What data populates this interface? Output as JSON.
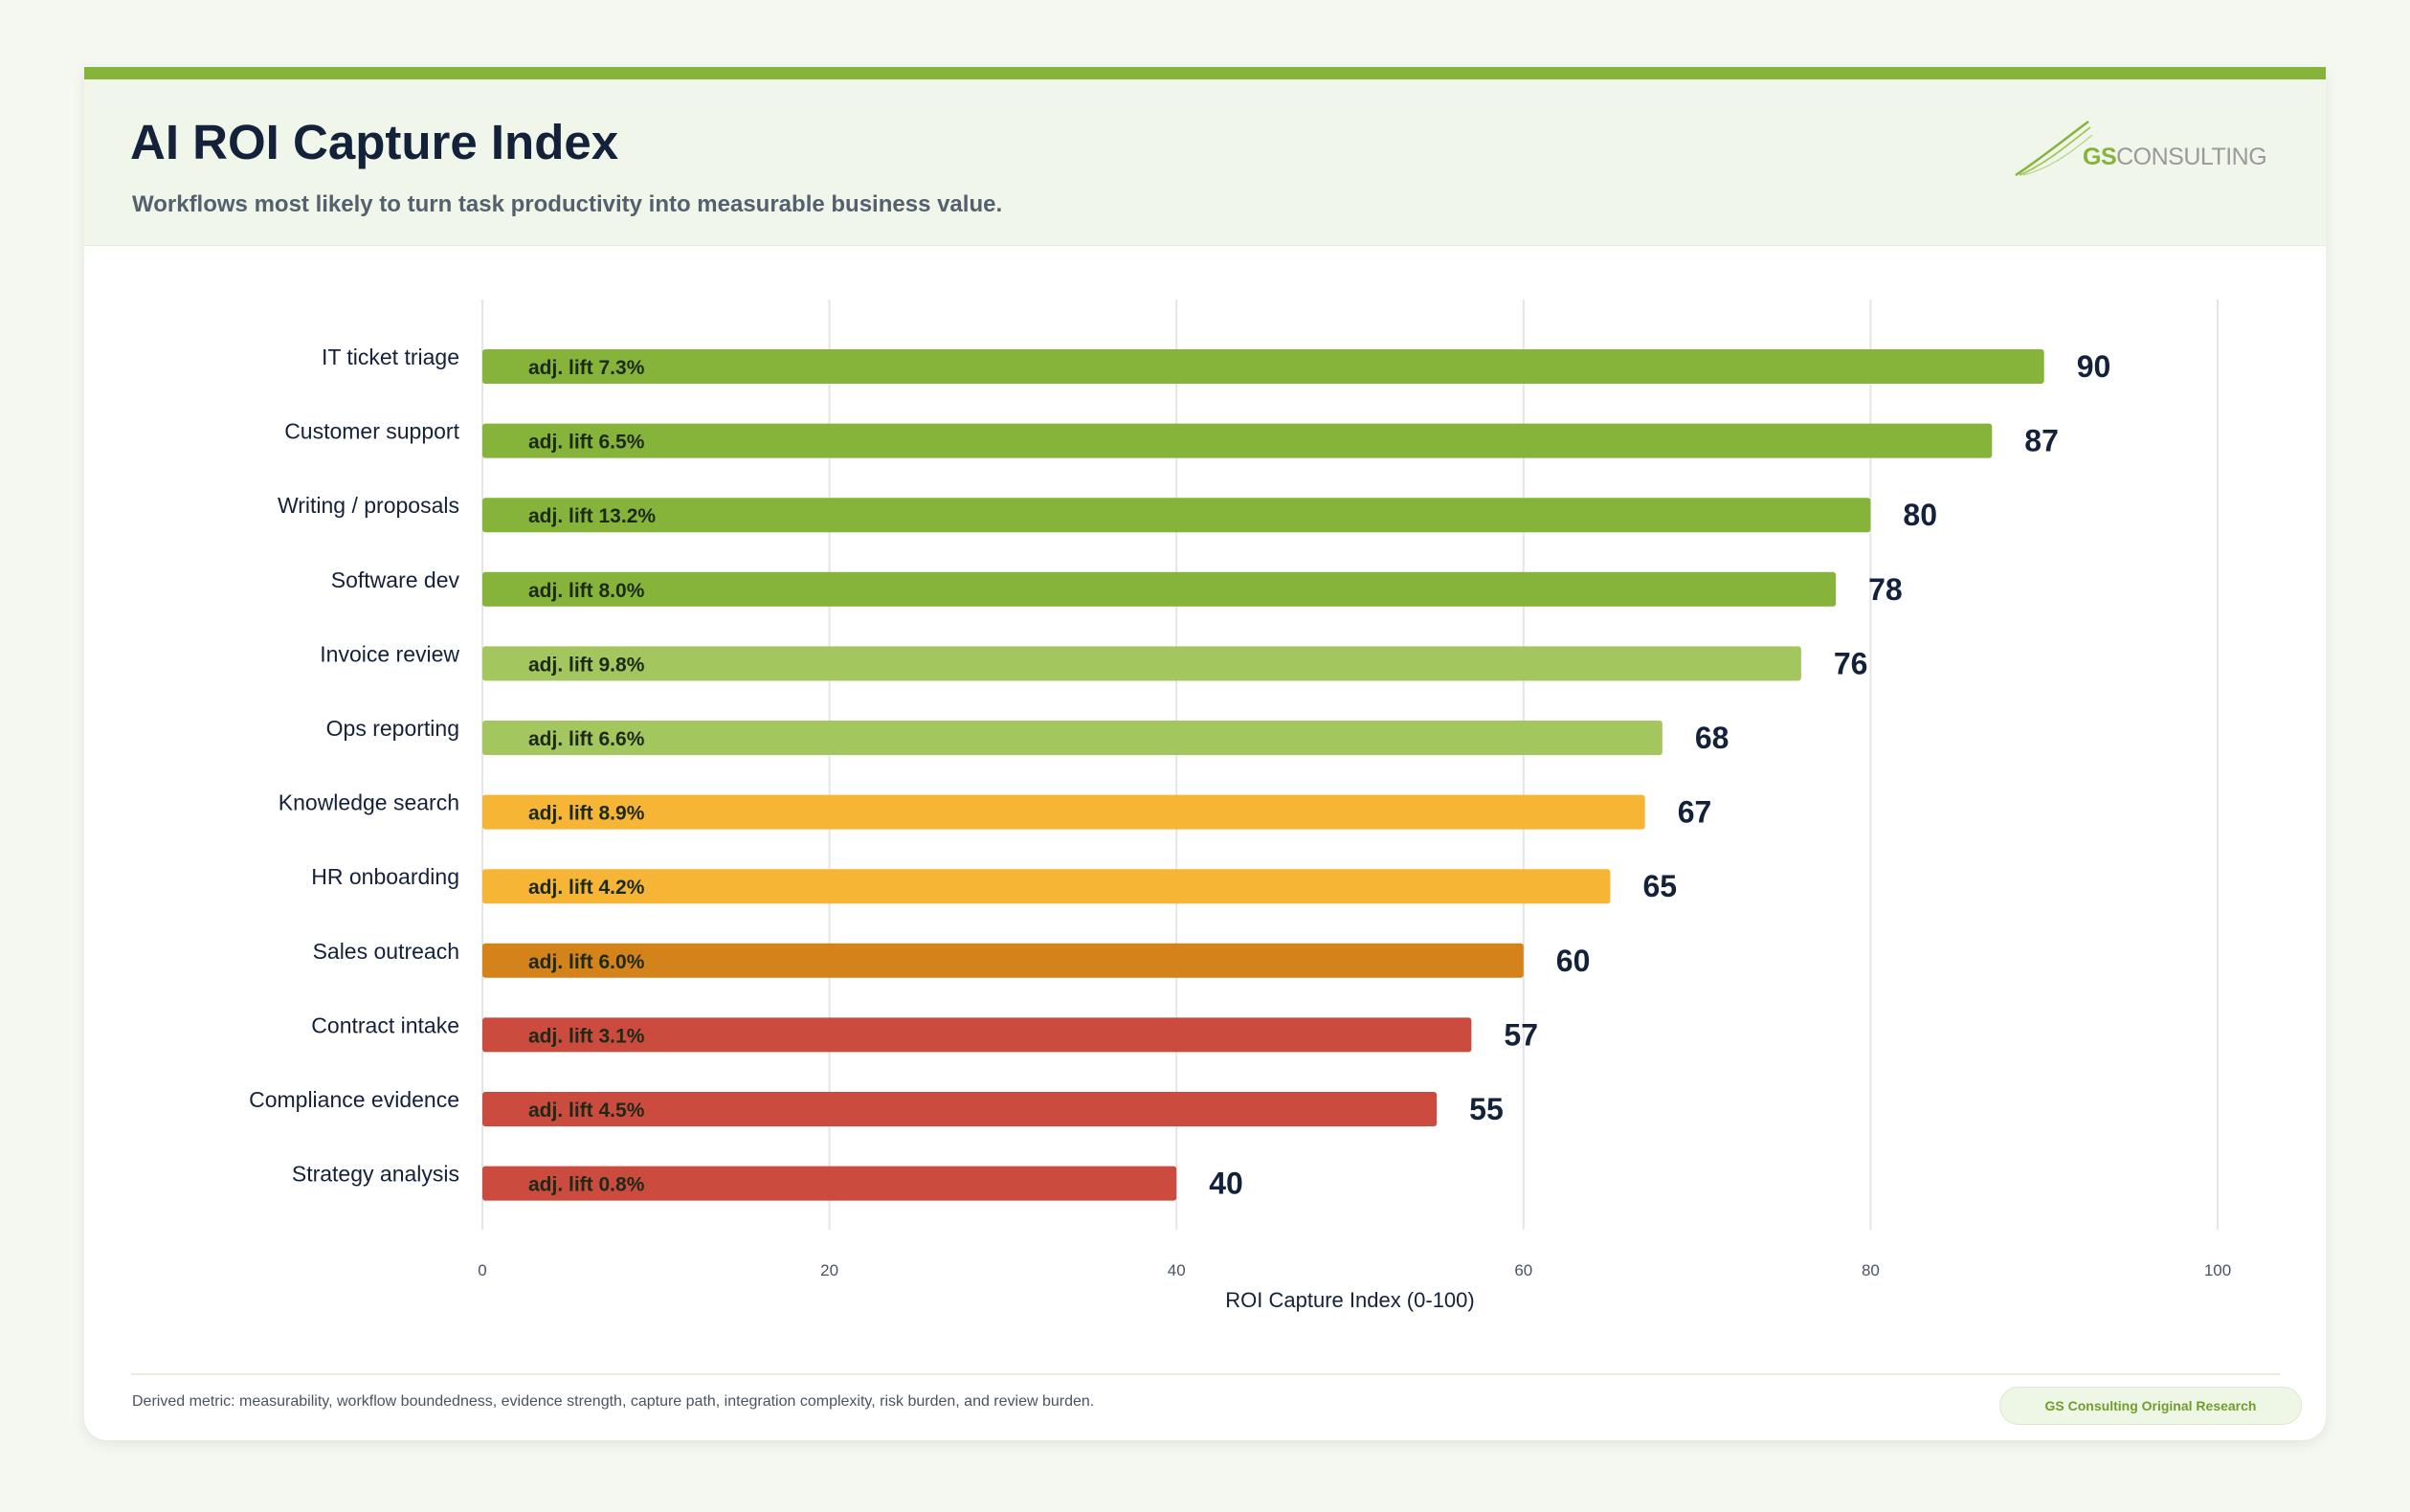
{
  "header": {
    "title": "AI ROI Capture Index",
    "subtitle": "Workflows most likely to turn task productivity into measurable business value.",
    "logo_gs": "GS",
    "logo_rest": "CONSULTING"
  },
  "footer": {
    "footnote": "Derived metric: measurability, workflow boundedness, evidence strength, capture path, integration complexity, risk burden, and review burden.",
    "badge": "GS Consulting Original Research"
  },
  "colors": {
    "accent": "#86b33a",
    "bar_dark_green": "#86b33a",
    "bar_light_green": "#a3c65e",
    "bar_yellow": "#f7b535",
    "bar_orange": "#d4821a",
    "bar_red": "#cc4b3f"
  },
  "chart_data": {
    "type": "bar",
    "orientation": "horizontal",
    "xlabel": "ROI Capture Index (0-100)",
    "xlim": [
      0,
      100
    ],
    "xticks": [
      0,
      20,
      40,
      60,
      80,
      100
    ],
    "grid": true,
    "categories": [
      "IT ticket triage",
      "Customer support",
      "Writing / proposals",
      "Software dev",
      "Invoice review",
      "Ops reporting",
      "Knowledge search",
      "HR onboarding",
      "Sales outreach",
      "Contract intake",
      "Compliance evidence",
      "Strategy analysis"
    ],
    "values": [
      90,
      87,
      80,
      78,
      76,
      68,
      67,
      65,
      60,
      57,
      55,
      40
    ],
    "bar_labels": [
      "adj. lift 7.3%",
      "adj. lift 6.5%",
      "adj. lift 13.2%",
      "adj. lift 8.0%",
      "adj. lift 9.8%",
      "adj. lift 6.6%",
      "adj. lift 8.9%",
      "adj. lift 4.2%",
      "adj. lift 6.0%",
      "adj. lift 3.1%",
      "adj. lift 4.5%",
      "adj. lift 0.8%"
    ],
    "bar_colors": [
      "#86b33a",
      "#86b33a",
      "#86b33a",
      "#86b33a",
      "#a3c65e",
      "#a3c65e",
      "#f7b535",
      "#f7b535",
      "#d4821a",
      "#cc4b3f",
      "#cc4b3f",
      "#cc4b3f"
    ]
  }
}
